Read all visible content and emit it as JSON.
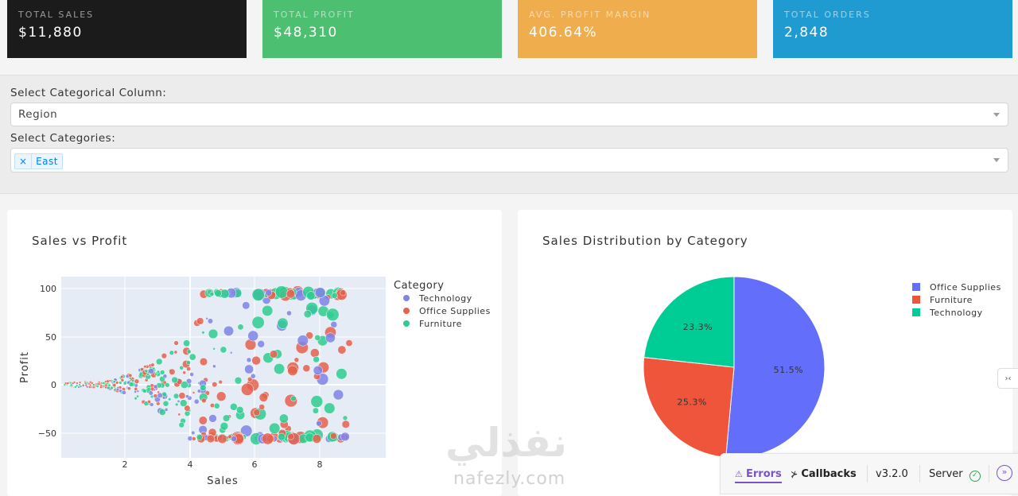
{
  "kpis": [
    {
      "label": "TOTAL SALES",
      "value": "$11,880",
      "color": "#1b1b1b"
    },
    {
      "label": "TOTAL PROFIT",
      "value": "$48,310",
      "color": "#4cc070"
    },
    {
      "label": "AVG. PROFIT MARGIN",
      "value": "406.64%",
      "color": "#f0ad4e"
    },
    {
      "label": "TOTAL ORDERS",
      "value": "2,848",
      "color": "#1f9bd1"
    }
  ],
  "filters": {
    "categorical_label": "Select Categorical Column:",
    "categorical_value": "Region",
    "categories_label": "Select Categories:",
    "selected_chip": "East",
    "chip_remove": "×"
  },
  "scatter": {
    "title": "Sales vs Profit",
    "xlabel": "Sales",
    "ylabel": "Profit",
    "legend_title": "Category",
    "series": [
      {
        "name": "Technology",
        "color": "#7f84e8"
      },
      {
        "name": "Office Supplies",
        "color": "#e5624e"
      },
      {
        "name": "Furniture",
        "color": "#2ecc8f"
      }
    ],
    "x_ticks": [
      "2",
      "4",
      "6",
      "8"
    ],
    "y_ticks": [
      "100",
      "50",
      "0",
      "−50"
    ]
  },
  "pie": {
    "title": "Sales Distribution by Category",
    "chart_data": {
      "type": "pie",
      "labels": [
        "Office Supplies",
        "Furniture",
        "Technology"
      ],
      "values": [
        51.5,
        25.3,
        23.3
      ],
      "slice_labels": [
        "51.5%",
        "25.3%",
        "23.3%"
      ],
      "colors": [
        "#636efa",
        "#ef553b",
        "#00cc96"
      ],
      "legend_placement": "top-right"
    }
  },
  "devtools": {
    "errors": "Errors",
    "callbacks": "Callbacks",
    "version": "v3.2.0",
    "server": "Server"
  },
  "watermark": {
    "arabic": "نفذلي",
    "latin": "nafezly.com"
  }
}
